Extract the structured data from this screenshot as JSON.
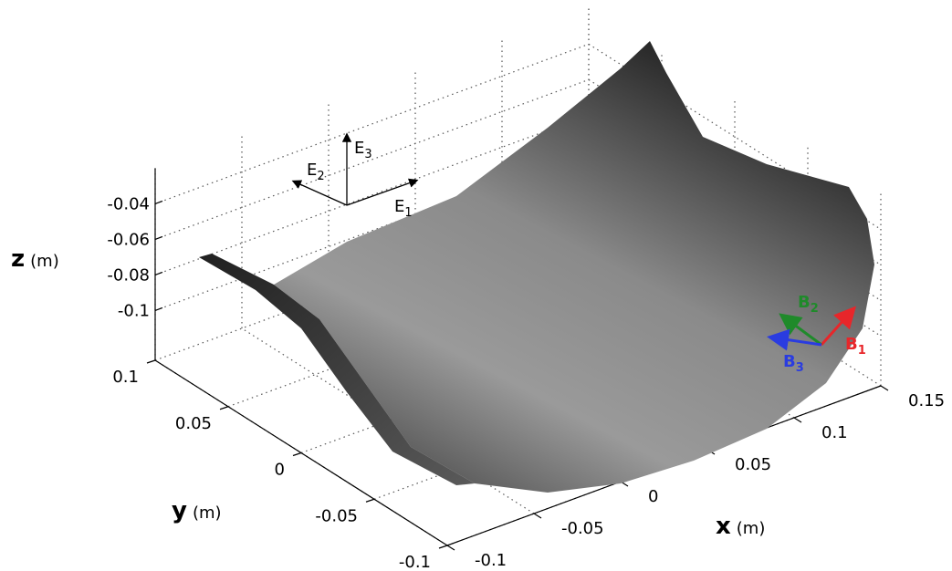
{
  "chart_data": {
    "type": "surface3d",
    "xlabel": {
      "symbol": "x",
      "unit": "(m)"
    },
    "ylabel": {
      "symbol": "y",
      "unit": "(m)"
    },
    "zlabel": {
      "symbol": "z",
      "unit": "(m)"
    },
    "xlim": [
      -0.1,
      0.15
    ],
    "xticks": [
      -0.1,
      -0.05,
      0,
      0.05,
      0.1,
      0.15
    ],
    "ylim": [
      -0.1,
      0.1
    ],
    "yticks": [
      -0.1,
      -0.05,
      0,
      0.05,
      0.1
    ],
    "zlim": [
      -0.128,
      -0.02
    ],
    "zticks": [
      -0.1,
      -0.08,
      -0.06,
      -0.04
    ],
    "grid": true,
    "vectors": [
      {
        "letter": "E",
        "sub": "1",
        "color": "#000000"
      },
      {
        "letter": "E",
        "sub": "2",
        "color": "#000000"
      },
      {
        "letter": "E",
        "sub": "3",
        "color": "#000000"
      },
      {
        "letter": "B",
        "sub": "1",
        "color": "#e8262a"
      },
      {
        "letter": "B",
        "sub": "2",
        "color": "#1f8a2a"
      },
      {
        "letter": "B",
        "sub": "3",
        "color": "#2a3ce0"
      }
    ]
  }
}
